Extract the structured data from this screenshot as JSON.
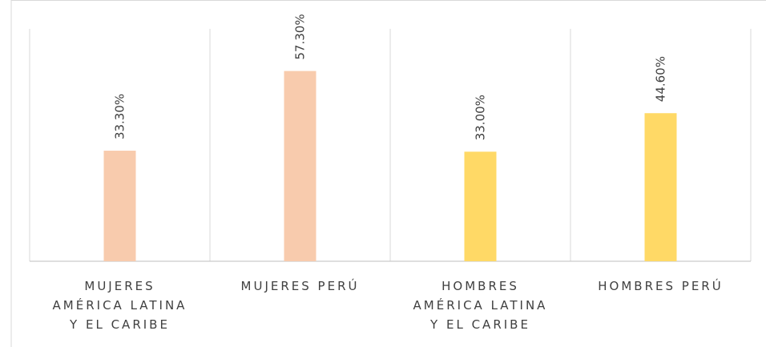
{
  "chart_data": {
    "type": "bar",
    "categories": [
      "MUJERES AMÉRICA LATINA Y EL CARIBE",
      "MUJERES PERÚ",
      "HOMBRES AMÉRICA LATINA Y EL CARIBE",
      "HOMBRES PERÚ"
    ],
    "values": [
      33.3,
      57.3,
      33.0,
      44.6
    ],
    "value_labels": [
      "33.30%",
      "57.30%",
      "33.00%",
      "44.60%"
    ],
    "colors": [
      "#f8cbad",
      "#f8cbad",
      "#ffd966",
      "#ffd966"
    ],
    "ylim": [
      0,
      70
    ]
  }
}
